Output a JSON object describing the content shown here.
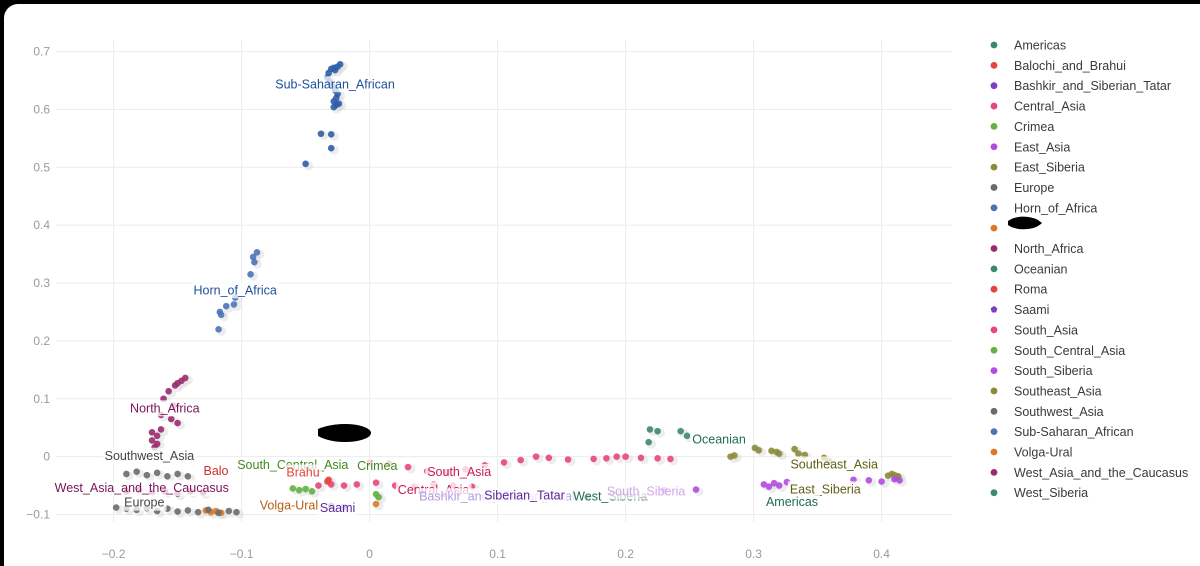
{
  "chart_data": {
    "type": "scatter",
    "xlim": [
      -0.245,
      0.455
    ],
    "ylim": [
      -0.113,
      0.72
    ],
    "x_ticks": [
      "−0.2",
      "−0.1",
      "0",
      "0.1",
      "0.2",
      "0.3",
      "0.4"
    ],
    "x_tick_values": [
      -0.2,
      -0.1,
      0,
      0.1,
      0.2,
      0.3,
      0.4
    ],
    "y_ticks": [
      "0.7",
      "0.6",
      "0.5",
      "0.4",
      "0.3",
      "0.2",
      "0.1",
      "0",
      "−0.1"
    ],
    "y_tick_values": [
      0.7,
      0.6,
      0.5,
      0.4,
      0.3,
      0.2,
      0.1,
      0,
      -0.1
    ],
    "grid": true,
    "legend_position": "right",
    "legend": [
      {
        "name": "Americas",
        "color": "#3d8a6b",
        "symbol": "circle"
      },
      {
        "name": "Balochi_and_Brahui",
        "color": "#e4433f",
        "symbol": "circle"
      },
      {
        "name": "Bashkir_and_Siberian_Tatar",
        "color": "#7b3fc4",
        "symbol": "circle"
      },
      {
        "name": "Central_Asia",
        "color": "#e8467c",
        "symbol": "circle"
      },
      {
        "name": "Crimea",
        "color": "#62b340",
        "symbol": "circle"
      },
      {
        "name": "East_Asia",
        "color": "#b24be0",
        "symbol": "circle"
      },
      {
        "name": "East_Siberia",
        "color": "#8b8b3a",
        "symbol": "circle"
      },
      {
        "name": "Europe",
        "color": "#6b6b6b",
        "symbol": "circle"
      },
      {
        "name": "Horn_of_Africa",
        "color": "#4a74b8",
        "symbol": "circle"
      },
      {
        "name": "",
        "color": "#d87a2e",
        "symbol": "circle"
      },
      {
        "name": "North_Africa",
        "color": "#9a2c6e",
        "symbol": "circle"
      },
      {
        "name": "Oceanian",
        "color": "#3d8a6b",
        "symbol": "circle"
      },
      {
        "name": "Roma",
        "color": "#e4433f",
        "symbol": "circle"
      },
      {
        "name": "Saami",
        "color": "#7b3fc4",
        "symbol": "pentagon"
      },
      {
        "name": "South_Asia",
        "color": "#e8467c",
        "symbol": "circle"
      },
      {
        "name": "South_Central_Asia",
        "color": "#62b340",
        "symbol": "circle"
      },
      {
        "name": "South_Siberia",
        "color": "#b24be0",
        "symbol": "circle"
      },
      {
        "name": "Southeast_Asia",
        "color": "#8b8b3a",
        "symbol": "circle"
      },
      {
        "name": "Southwest_Asia",
        "color": "#6b6b6b",
        "symbol": "circle"
      },
      {
        "name": "Sub-Saharan_African",
        "color": "#4a74b8",
        "symbol": "circle"
      },
      {
        "name": "Volga-Ural",
        "color": "#d87a2e",
        "symbol": "circle"
      },
      {
        "name": "West_Asia_and_the_Caucasus",
        "color": "#9a2c6e",
        "symbol": "circle"
      },
      {
        "name": "West_Siberia",
        "color": "#3d8a6b",
        "symbol": "circle"
      }
    ],
    "series": [
      {
        "name": "Sub-Saharan_African",
        "color": "#2e5ea8",
        "points": [
          [
            -0.025,
            0.674
          ],
          [
            -0.023,
            0.678
          ],
          [
            -0.028,
            0.672
          ],
          [
            -0.03,
            0.67
          ],
          [
            -0.027,
            0.668
          ],
          [
            -0.032,
            0.663
          ],
          [
            -0.033,
            0.655
          ],
          [
            -0.031,
            0.648
          ],
          [
            -0.029,
            0.64
          ],
          [
            -0.027,
            0.633
          ],
          [
            -0.025,
            0.627
          ],
          [
            -0.026,
            0.62
          ],
          [
            -0.028,
            0.614
          ],
          [
            -0.026,
            0.608
          ],
          [
            -0.024,
            0.61
          ],
          [
            -0.028,
            0.604
          ],
          [
            -0.038,
            0.558
          ],
          [
            -0.03,
            0.557
          ],
          [
            -0.03,
            0.533
          ],
          [
            -0.05,
            0.506
          ]
        ]
      },
      {
        "name": "Horn_of_Africa",
        "color": "#4a74b8",
        "points": [
          [
            -0.088,
            0.353
          ],
          [
            -0.091,
            0.345
          ],
          [
            -0.09,
            0.336
          ],
          [
            -0.093,
            0.315
          ],
          [
            -0.105,
            0.275
          ],
          [
            -0.106,
            0.263
          ],
          [
            -0.112,
            0.26
          ],
          [
            -0.117,
            0.25
          ],
          [
            -0.116,
            0.245
          ],
          [
            -0.118,
            0.22
          ]
        ]
      },
      {
        "name": "North_Africa",
        "color": "#9a2c6e",
        "points": [
          [
            -0.144,
            0.136
          ],
          [
            -0.147,
            0.131
          ],
          [
            -0.15,
            0.127
          ],
          [
            -0.152,
            0.123
          ],
          [
            -0.157,
            0.113
          ],
          [
            -0.161,
            0.1
          ],
          [
            -0.153,
            0.088
          ],
          [
            -0.163,
            0.072
          ],
          [
            -0.155,
            0.065
          ],
          [
            -0.15,
            0.058
          ],
          [
            -0.163,
            0.047
          ],
          [
            -0.17,
            0.042
          ],
          [
            -0.166,
            0.036
          ],
          [
            -0.17,
            0.028
          ],
          [
            -0.166,
            0.022
          ],
          [
            -0.168,
            0.016
          ]
        ]
      },
      {
        "name": "Oceanian",
        "color": "#3d8a6b",
        "points": [
          [
            0.219,
            0.047
          ],
          [
            0.225,
            0.044
          ],
          [
            0.243,
            0.044
          ],
          [
            0.248,
            0.036
          ],
          [
            0.218,
            0.025
          ]
        ]
      },
      {
        "name": "Southeast_Asia",
        "color": "#8b8b3a",
        "points": [
          [
            0.282,
            0.0
          ],
          [
            0.285,
            0.002
          ],
          [
            0.301,
            0.015
          ],
          [
            0.304,
            0.011
          ],
          [
            0.314,
            0.01
          ],
          [
            0.318,
            0.008
          ],
          [
            0.32,
            0.005
          ],
          [
            0.332,
            0.013
          ],
          [
            0.335,
            0.005
          ],
          [
            0.34,
            0.003
          ],
          [
            0.355,
            -0.002
          ],
          [
            0.359,
            -0.008
          ]
        ]
      },
      {
        "name": "East_Siberia",
        "color": "#8b8b3a",
        "points": [
          [
            0.405,
            -0.033
          ],
          [
            0.408,
            -0.03
          ],
          [
            0.41,
            -0.032
          ],
          [
            0.413,
            -0.034
          ],
          [
            0.412,
            -0.036
          ]
        ]
      },
      {
        "name": "East_Asia",
        "color": "#b24be0",
        "points": [
          [
            0.308,
            -0.048
          ],
          [
            0.312,
            -0.052
          ],
          [
            0.316,
            -0.046
          ],
          [
            0.32,
            -0.05
          ],
          [
            0.326,
            -0.044
          ],
          [
            0.378,
            -0.04
          ],
          [
            0.39,
            -0.041
          ],
          [
            0.4,
            -0.043
          ],
          [
            0.41,
            -0.039
          ],
          [
            0.414,
            -0.041
          ]
        ]
      },
      {
        "name": "South_Siberia",
        "color": "#b24be0",
        "points": [
          [
            0.23,
            -0.058
          ],
          [
            0.255,
            -0.057
          ],
          [
            0.2,
            -0.06
          ],
          [
            0.16,
            -0.061
          ]
        ]
      },
      {
        "name": "South_Asia",
        "color": "#e8467c",
        "points": [
          [
            0.0,
            -0.01
          ],
          [
            0.015,
            -0.012
          ],
          [
            0.03,
            -0.018
          ],
          [
            0.045,
            -0.025
          ],
          [
            0.06,
            -0.027
          ],
          [
            0.075,
            -0.022
          ],
          [
            0.09,
            -0.015
          ],
          [
            0.105,
            -0.01
          ],
          [
            0.118,
            -0.006
          ],
          [
            0.13,
            0.0
          ],
          [
            0.14,
            -0.002
          ],
          [
            0.155,
            -0.005
          ],
          [
            0.175,
            -0.004
          ],
          [
            0.185,
            -0.003
          ],
          [
            0.193,
            0.0
          ],
          [
            0.2,
            0.0
          ],
          [
            0.212,
            -0.002
          ],
          [
            0.225,
            -0.003
          ],
          [
            0.235,
            -0.004
          ]
        ]
      },
      {
        "name": "Central_Asia",
        "color": "#e8467c",
        "points": [
          [
            -0.04,
            -0.05
          ],
          [
            -0.03,
            -0.048
          ],
          [
            -0.02,
            -0.05
          ],
          [
            -0.01,
            -0.048
          ],
          [
            0.005,
            -0.045
          ],
          [
            0.02,
            -0.05
          ],
          [
            0.035,
            -0.052
          ],
          [
            0.05,
            -0.048
          ],
          [
            0.065,
            -0.05
          ],
          [
            0.08,
            -0.052
          ]
        ]
      },
      {
        "name": "South_Central_Asia",
        "color": "#62b340",
        "points": [
          [
            -0.06,
            -0.055
          ],
          [
            -0.055,
            -0.058
          ],
          [
            -0.05,
            -0.056
          ],
          [
            -0.045,
            -0.06
          ],
          [
            0.005,
            -0.065
          ],
          [
            0.007,
            -0.07
          ]
        ]
      },
      {
        "name": "Roma",
        "color": "#e4433f",
        "points": [
          [
            -0.032,
            -0.04
          ],
          [
            -0.033,
            -0.043
          ]
        ]
      },
      {
        "name": "Volga-Ural",
        "color": "#d87a2e",
        "points": [
          [
            -0.128,
            -0.093
          ],
          [
            -0.124,
            -0.096
          ],
          [
            -0.12,
            -0.094
          ],
          [
            -0.116,
            -0.097
          ],
          [
            0.005,
            -0.082
          ]
        ]
      },
      {
        "name": "Europe",
        "color": "#6b6b6b",
        "points": [
          [
            -0.198,
            -0.088
          ],
          [
            -0.19,
            -0.09
          ],
          [
            -0.182,
            -0.092
          ],
          [
            -0.174,
            -0.089
          ],
          [
            -0.166,
            -0.094
          ],
          [
            -0.158,
            -0.09
          ],
          [
            -0.15,
            -0.095
          ],
          [
            -0.142,
            -0.093
          ],
          [
            -0.134,
            -0.096
          ],
          [
            -0.126,
            -0.092
          ],
          [
            -0.118,
            -0.097
          ],
          [
            -0.11,
            -0.094
          ],
          [
            -0.104,
            -0.096
          ]
        ]
      },
      {
        "name": "West_Asia_and_the_Caucasus",
        "color": "#9a2c6e",
        "points": [
          [
            -0.19,
            -0.06
          ],
          [
            -0.18,
            -0.058
          ],
          [
            -0.17,
            -0.062
          ],
          [
            -0.16,
            -0.06
          ],
          [
            -0.15,
            -0.064
          ],
          [
            -0.14,
            -0.06
          ],
          [
            -0.13,
            -0.062
          ]
        ]
      },
      {
        "name": "Southwest_Asia",
        "color": "#6b6b6b",
        "points": [
          [
            -0.19,
            -0.03
          ],
          [
            -0.182,
            -0.026
          ],
          [
            -0.174,
            -0.032
          ],
          [
            -0.166,
            -0.028
          ],
          [
            -0.158,
            -0.034
          ],
          [
            -0.15,
            -0.03
          ],
          [
            -0.142,
            -0.034
          ]
        ]
      },
      {
        "name": "Saami",
        "color": "#7b3fc4",
        "points": [
          [
            -0.03,
            -0.085
          ],
          [
            -0.02,
            -0.087
          ]
        ]
      },
      {
        "name": "West_Siberia",
        "color": "#3d8a6b",
        "points": [
          [
            0.17,
            -0.07
          ],
          [
            0.16,
            -0.068
          ]
        ]
      }
    ],
    "annotations": [
      {
        "text": "Sub-Saharan_African",
        "x": -0.027,
        "y": 0.64,
        "color": "#1f4f9a"
      },
      {
        "text": "Horn_of_Africa",
        "x": -0.105,
        "y": 0.284,
        "color": "#1f4f9a"
      },
      {
        "text": "North_Africa",
        "x": -0.16,
        "y": 0.08,
        "color": "#7a1555"
      },
      {
        "text": "Southwest_Asia",
        "x": -0.172,
        "y": -0.002,
        "color": "#444444"
      },
      {
        "text": "South_Central_Asia",
        "x": -0.06,
        "y": -0.018,
        "color": "#3f8a1e"
      },
      {
        "text": "Crimea",
        "x": 0.006,
        "y": -0.02,
        "color": "#3f8a1e"
      },
      {
        "text": "Balo",
        "x": -0.12,
        "y": -0.028,
        "color": "#d12c2c"
      },
      {
        "text": "Brahu",
        "x": -0.052,
        "y": -0.031,
        "color": "#e4433f"
      },
      {
        "text": "South_Asia",
        "x": 0.07,
        "y": -0.03,
        "color": "#c41a5a"
      },
      {
        "text": "West_Asia_and_the_Caucasus",
        "x": -0.178,
        "y": -0.058,
        "color": "#7a1555"
      },
      {
        "text": "Central_Asia",
        "x": 0.05,
        "y": -0.061,
        "color": "#c41a5a"
      },
      {
        "text": "Bashkir_and_Siberian_Tatar",
        "x": 0.1,
        "y": -0.072,
        "color": "#b49ae0"
      },
      {
        "text": "Siberian_Tatar",
        "x": 0.121,
        "y": -0.071,
        "color": "#5a2a9a"
      },
      {
        "text": "West_Siberia",
        "x": 0.188,
        "y": -0.072,
        "color": "#1f6e4c"
      },
      {
        "text": "South_Siberia",
        "x": 0.216,
        "y": -0.064,
        "color": "#d2a6ea"
      },
      {
        "text": "Europe",
        "x": -0.176,
        "y": -0.083,
        "color": "#444444"
      },
      {
        "text": "Volga-Ural",
        "x": -0.063,
        "y": -0.088,
        "color": "#b75e12"
      },
      {
        "text": "Saami",
        "x": -0.025,
        "y": -0.092,
        "color": "#5a2a9a"
      },
      {
        "text": "Oceanian",
        "x": 0.273,
        "y": 0.026,
        "color": "#1f6e4c"
      },
      {
        "text": "Southeast_Asia",
        "x": 0.363,
        "y": -0.017,
        "color": "#5f5f16"
      },
      {
        "text": "East_Siberia",
        "x": 0.356,
        "y": -0.06,
        "color": "#5f5f16"
      },
      {
        "text": "Americas",
        "x": 0.33,
        "y": -0.082,
        "color": "#1f6e4c"
      }
    ]
  }
}
